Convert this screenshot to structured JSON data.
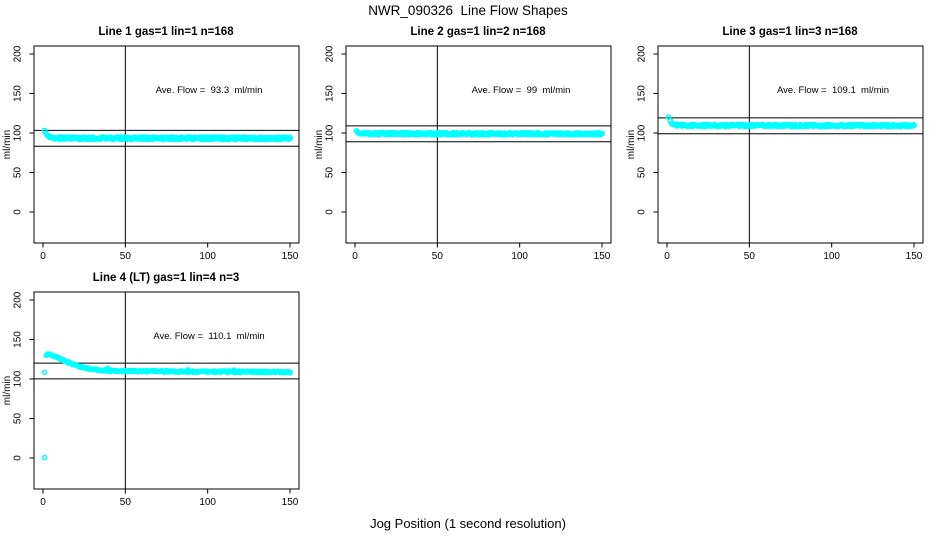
{
  "figure": {
    "title": "NWR_090326  Line Flow Shapes",
    "xlabel": "Jog Position (1 second resolution)",
    "background": "#ffffff",
    "axis_color": "#000000",
    "point_color": "#00ffff"
  },
  "chart_data": [
    {
      "type": "scatter",
      "title": "Line 1 gas=1 lin=1 n=168",
      "annotation": "Ave. Flow =  93.3  ml/min",
      "ave_flow_ml_min": 93.3,
      "ylabel": "ml/min",
      "x_ticks": [
        0,
        50,
        100,
        150
      ],
      "y_ticks": [
        0,
        50,
        100,
        150,
        200
      ],
      "xlim": [
        -5,
        155
      ],
      "ylim": [
        -38,
        210
      ],
      "ref_lines_y": [
        103.3,
        83.3
      ],
      "vline_x": 50,
      "mean_profile": [
        [
          1,
          103
        ],
        [
          2,
          99.5
        ],
        [
          3,
          96.5
        ],
        [
          4,
          95
        ],
        [
          5,
          94.2
        ],
        [
          7,
          93.6
        ],
        [
          12,
          93.4
        ],
        [
          150,
          93.3
        ]
      ],
      "noise_amplitude": 1.6,
      "overlay_density": 3,
      "extra_points": []
    },
    {
      "type": "scatter",
      "title": "Line 2 gas=1 lin=2 n=168",
      "annotation": "Ave. Flow =  99  ml/min",
      "ave_flow_ml_min": 99,
      "ylabel": "ml/min",
      "x_ticks": [
        0,
        50,
        100,
        150
      ],
      "y_ticks": [
        0,
        50,
        100,
        150,
        200
      ],
      "xlim": [
        -5,
        155
      ],
      "ylim": [
        -38,
        210
      ],
      "ref_lines_y": [
        109,
        89
      ],
      "vline_x": 50,
      "mean_profile": [
        [
          1,
          102.5
        ],
        [
          2,
          100.3
        ],
        [
          3,
          99.6
        ],
        [
          5,
          99.2
        ],
        [
          150,
          99
        ]
      ],
      "noise_amplitude": 1.4,
      "overlay_density": 3,
      "extra_points": []
    },
    {
      "type": "scatter",
      "title": "Line 3 gas=1 lin=3 n=168",
      "annotation": "Ave. Flow =  109.1  ml/min",
      "ave_flow_ml_min": 109.1,
      "ylabel": "ml/min",
      "x_ticks": [
        0,
        50,
        100,
        150
      ],
      "y_ticks": [
        0,
        50,
        100,
        150,
        200
      ],
      "xlim": [
        -5,
        155
      ],
      "ylim": [
        -38,
        210
      ],
      "ref_lines_y": [
        119.1,
        99.1
      ],
      "vline_x": 50,
      "mean_profile": [
        [
          1,
          120
        ],
        [
          2,
          115.5
        ],
        [
          3,
          112
        ],
        [
          4,
          110.6
        ],
        [
          6,
          109.9
        ],
        [
          10,
          109.6
        ],
        [
          150,
          109.3
        ]
      ],
      "noise_amplitude": 1.3,
      "overlay_density": 3,
      "extra_points": []
    },
    {
      "type": "scatter",
      "title": "Line 4 (LT) gas=1 lin=4 n=3",
      "annotation": "Ave. Flow =  110.1  ml/min",
      "ave_flow_ml_min": 110.1,
      "ylabel": "ml/min",
      "x_ticks": [
        0,
        50,
        100,
        150
      ],
      "y_ticks": [
        0,
        50,
        100,
        150,
        200
      ],
      "xlim": [
        -5,
        155
      ],
      "ylim": [
        -38,
        210
      ],
      "ref_lines_y": [
        120.1,
        100.1
      ],
      "vline_x": 50,
      "mean_profile": [
        [
          2,
          130
        ],
        [
          3,
          131.5
        ],
        [
          5,
          130.5
        ],
        [
          7,
          128.8
        ],
        [
          9,
          127
        ],
        [
          12,
          124
        ],
        [
          15,
          121.5
        ],
        [
          18,
          119
        ],
        [
          22,
          116
        ],
        [
          26,
          113.8
        ],
        [
          30,
          112.3
        ],
        [
          35,
          111.2
        ],
        [
          40,
          110.5
        ],
        [
          50,
          110.1
        ],
        [
          70,
          109.7
        ],
        [
          100,
          109.4
        ],
        [
          130,
          109.1
        ],
        [
          150,
          108.6
        ]
      ],
      "noise_amplitude": 0.9,
      "overlay_density": 2,
      "extra_points": [
        [
          1,
          0.5
        ],
        [
          1,
          108.5
        ],
        [
          39,
          113.2
        ],
        [
          40,
          112.7
        ],
        [
          88,
          111.6
        ],
        [
          116,
          111.3
        ]
      ]
    }
  ]
}
